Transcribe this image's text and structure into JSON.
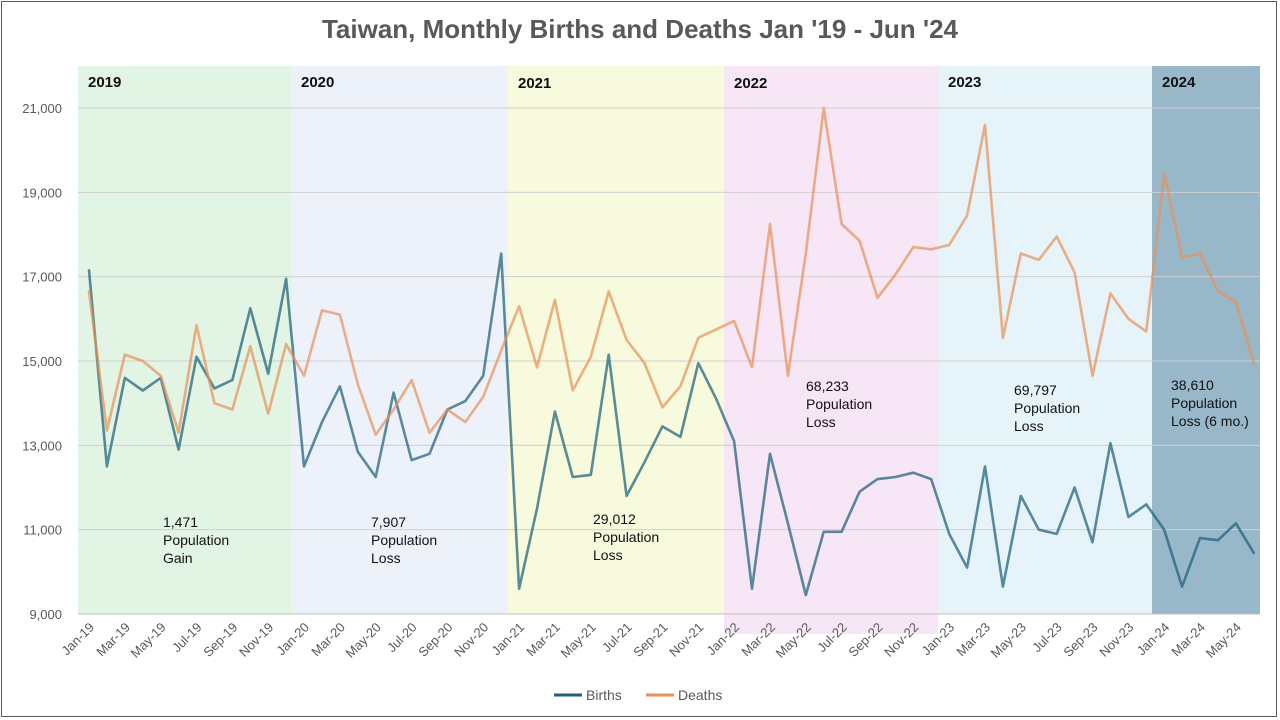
{
  "chart_data": {
    "type": "line",
    "title": "Taiwan, Monthly Births and Deaths Jan '19 - Jun '24",
    "xlabel": "",
    "ylabel": "",
    "ylim": [
      9000,
      22000
    ],
    "yticks": [
      9000,
      11000,
      13000,
      15000,
      17000,
      19000,
      21000
    ],
    "ytick_labels": [
      "9,000",
      "11,000",
      "13,000",
      "15,000",
      "17,000",
      "19,000",
      "21,000"
    ],
    "grid": true,
    "legend_position": "bottom",
    "x_tick_labels": [
      "Jan-19",
      "Mar-19",
      "May-19",
      "Jul-19",
      "Sep-19",
      "Nov-19",
      "Jan-20",
      "Mar-20",
      "May-20",
      "Jul-20",
      "Sep-20",
      "Nov-20",
      "Jan-21",
      "Mar-21",
      "May-21",
      "Jul-21",
      "Sep-21",
      "Nov-21",
      "Jan-22",
      "Mar-22",
      "May-22",
      "Jul-22",
      "Sep-22",
      "Nov-22",
      "Jan-23",
      "Mar-23",
      "May-23",
      "Jul-23",
      "Sep-23",
      "Nov-23",
      "Jan-24",
      "Mar-24",
      "May-24"
    ],
    "x": [
      "Jan-19",
      "Feb-19",
      "Mar-19",
      "Apr-19",
      "May-19",
      "Jun-19",
      "Jul-19",
      "Aug-19",
      "Sep-19",
      "Oct-19",
      "Nov-19",
      "Dec-19",
      "Jan-20",
      "Feb-20",
      "Mar-20",
      "Apr-20",
      "May-20",
      "Jun-20",
      "Jul-20",
      "Aug-20",
      "Sep-20",
      "Oct-20",
      "Nov-20",
      "Dec-20",
      "Jan-21",
      "Feb-21",
      "Mar-21",
      "Apr-21",
      "May-21",
      "Jun-21",
      "Jul-21",
      "Aug-21",
      "Sep-21",
      "Oct-21",
      "Nov-21",
      "Dec-21",
      "Jan-22",
      "Feb-22",
      "Mar-22",
      "Apr-22",
      "May-22",
      "Jun-22",
      "Jul-22",
      "Aug-22",
      "Sep-22",
      "Oct-22",
      "Nov-22",
      "Dec-22",
      "Jan-23",
      "Feb-23",
      "Mar-23",
      "Apr-23",
      "May-23",
      "Jun-23",
      "Jul-23",
      "Aug-23",
      "Sep-23",
      "Oct-23",
      "Nov-23",
      "Dec-23",
      "Jan-24",
      "Feb-24",
      "Mar-24",
      "Apr-24",
      "May-24",
      "Jun-24"
    ],
    "series": [
      {
        "name": "Births",
        "color": "#1f5f7a",
        "values": [
          17150,
          12500,
          14600,
          14300,
          14600,
          12900,
          15100,
          14350,
          14550,
          16250,
          14700,
          16950,
          12500,
          13550,
          14400,
          12850,
          12250,
          14250,
          12650,
          12800,
          13850,
          14050,
          14650,
          17550,
          9600,
          11500,
          13800,
          12250,
          12300,
          15150,
          11800,
          12600,
          13450,
          13200,
          14950,
          14100,
          13100,
          9600,
          12800,
          11150,
          9450,
          10950,
          10950,
          11900,
          12200,
          12250,
          12350,
          12200,
          10900,
          10100,
          12500,
          9650,
          11800,
          11000,
          10900,
          12000,
          10700,
          13050,
          11300,
          11600,
          11000,
          9650,
          10800,
          10750,
          11150,
          10450
        ]
      },
      {
        "name": "Deaths",
        "color": "#e8925a",
        "values": [
          16650,
          13350,
          15150,
          15000,
          14650,
          13300,
          15850,
          14000,
          13850,
          15350,
          13750,
          15400,
          14650,
          16200,
          16100,
          14450,
          13250,
          13850,
          14550,
          13300,
          13850,
          13550,
          14150,
          15250,
          16300,
          14850,
          16450,
          14300,
          15100,
          16650,
          15500,
          14950,
          13900,
          14400,
          15550,
          15750,
          15950,
          14850,
          18250,
          14650,
          17550,
          21000,
          18250,
          17850,
          16500,
          17050,
          17700,
          17650,
          17750,
          18450,
          20600,
          15550,
          17550,
          17400,
          17950,
          17100,
          14650,
          16600,
          16000,
          15700,
          19450,
          17450,
          17550,
          16650,
          16400,
          14950
        ]
      }
    ]
  },
  "year_bands": [
    {
      "label": "2019",
      "color": "#e2f4e4"
    },
    {
      "label": "2020",
      "color": "#edf2fa"
    },
    {
      "label": "2021",
      "color": "#f7fadc"
    },
    {
      "label": "2022",
      "color": "#f7e6f6"
    },
    {
      "label": "2023",
      "color": "#e6f4fa"
    },
    {
      "label": "2024",
      "color": "#98b8c9"
    }
  ],
  "annotations": [
    {
      "lines": [
        "1,471",
        "Population",
        "Gain"
      ]
    },
    {
      "lines": [
        "7,907",
        "Population",
        "Loss"
      ]
    },
    {
      "lines": [
        "29,012",
        "Population",
        "Loss"
      ]
    },
    {
      "lines": [
        "68,233",
        "Population",
        "Loss"
      ]
    },
    {
      "lines": [
        "69,797",
        "Population",
        "Loss"
      ]
    },
    {
      "lines": [
        "38,610",
        "Population",
        "Loss (6 mo.)"
      ]
    }
  ],
  "legend": [
    {
      "label": "Births",
      "color": "#1f5f7a"
    },
    {
      "label": "Deaths",
      "color": "#e8925a"
    }
  ]
}
